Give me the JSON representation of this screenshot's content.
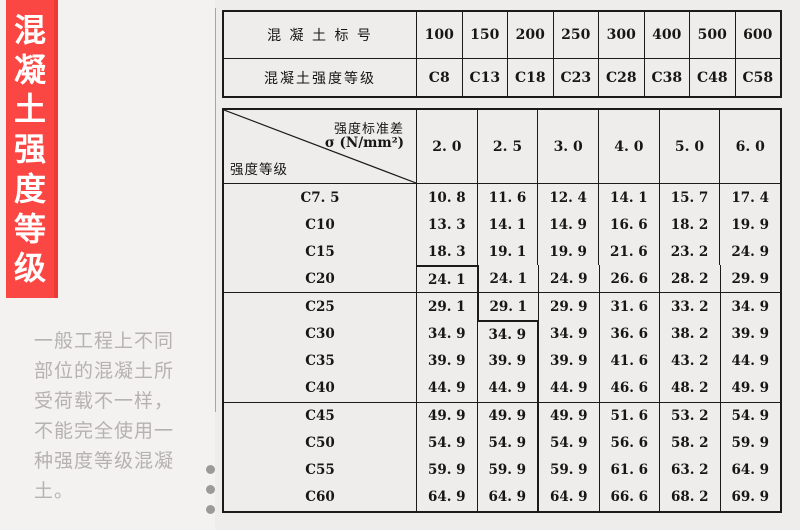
{
  "colors": {
    "banner_red": "#fa4743",
    "banner_edge": "#ee3934",
    "note_gray": "#b5b2af",
    "table_line": "#1b1b1b",
    "background": "#eeedeb",
    "dot_gray": "#9c9a98"
  },
  "banner": {
    "title": "混凝土强度等级",
    "chars": [
      "混",
      "凝",
      "土",
      "强",
      "度",
      "等",
      "级"
    ]
  },
  "note": {
    "lines": [
      "一般工程上不同",
      "部位的混凝土所",
      "受荷载不一样，",
      "不能完全使用一",
      "种强度等级混凝",
      "土。"
    ]
  },
  "grade_table": {
    "rows": [
      {
        "label": "混 凝 土 标 号",
        "values": [
          "100",
          "150",
          "200",
          "250",
          "300",
          "400",
          "500",
          "600"
        ]
      },
      {
        "label": "混凝土强度等级",
        "values": [
          "C8",
          "C13",
          "C18",
          "C23",
          "C28",
          "C38",
          "C48",
          "C58"
        ]
      }
    ]
  },
  "sigma_table": {
    "corner": {
      "line1": "强度标准差",
      "line2": "σ (N/mm²)",
      "bottom_label": "强度等级"
    },
    "sigma_values": [
      "2. 0",
      "2. 5",
      "3. 0",
      "4. 0",
      "5. 0",
      "6. 0"
    ],
    "rows": [
      {
        "label": "C7. 5",
        "values": [
          "10. 8",
          "11. 6",
          "12. 4",
          "14. 1",
          "15. 7",
          "17. 4"
        ]
      },
      {
        "label": "C10",
        "values": [
          "13. 3",
          "14. 1",
          "14. 9",
          "16. 6",
          "18. 2",
          "19. 9"
        ]
      },
      {
        "label": "C15",
        "values": [
          "18. 3",
          "19. 1",
          "19. 9",
          "21. 6",
          "23. 2",
          "24. 9"
        ]
      },
      {
        "label": "C20",
        "values": [
          "24. 1",
          "24. 1",
          "24. 9",
          "26. 6",
          "28. 2",
          "29. 9"
        ]
      },
      {
        "label": "C25",
        "values": [
          "29. 1",
          "29. 1",
          "29. 9",
          "31. 6",
          "33. 2",
          "34. 9"
        ]
      },
      {
        "label": "C30",
        "values": [
          "34. 9",
          "34. 9",
          "34. 9",
          "36. 6",
          "38. 2",
          "39. 9"
        ]
      },
      {
        "label": "C35",
        "values": [
          "39. 9",
          "39. 9",
          "39. 9",
          "41. 6",
          "43. 2",
          "44. 9"
        ]
      },
      {
        "label": "C40",
        "values": [
          "44. 9",
          "44. 9",
          "44. 9",
          "46. 6",
          "48. 2",
          "49. 9"
        ]
      },
      {
        "label": "C45",
        "values": [
          "49. 9",
          "49. 9",
          "49. 9",
          "51. 6",
          "53. 2",
          "54. 9"
        ]
      },
      {
        "label": "C50",
        "values": [
          "54. 9",
          "54. 9",
          "54. 9",
          "56. 6",
          "58. 2",
          "59. 9"
        ]
      },
      {
        "label": "C55",
        "values": [
          "59. 9",
          "59. 9",
          "59. 9",
          "61. 6",
          "63. 2",
          "64. 9"
        ]
      },
      {
        "label": "C60",
        "values": [
          "64. 9",
          "64. 9",
          "64. 9",
          "66. 6",
          "68. 2",
          "69. 9"
        ]
      }
    ]
  }
}
